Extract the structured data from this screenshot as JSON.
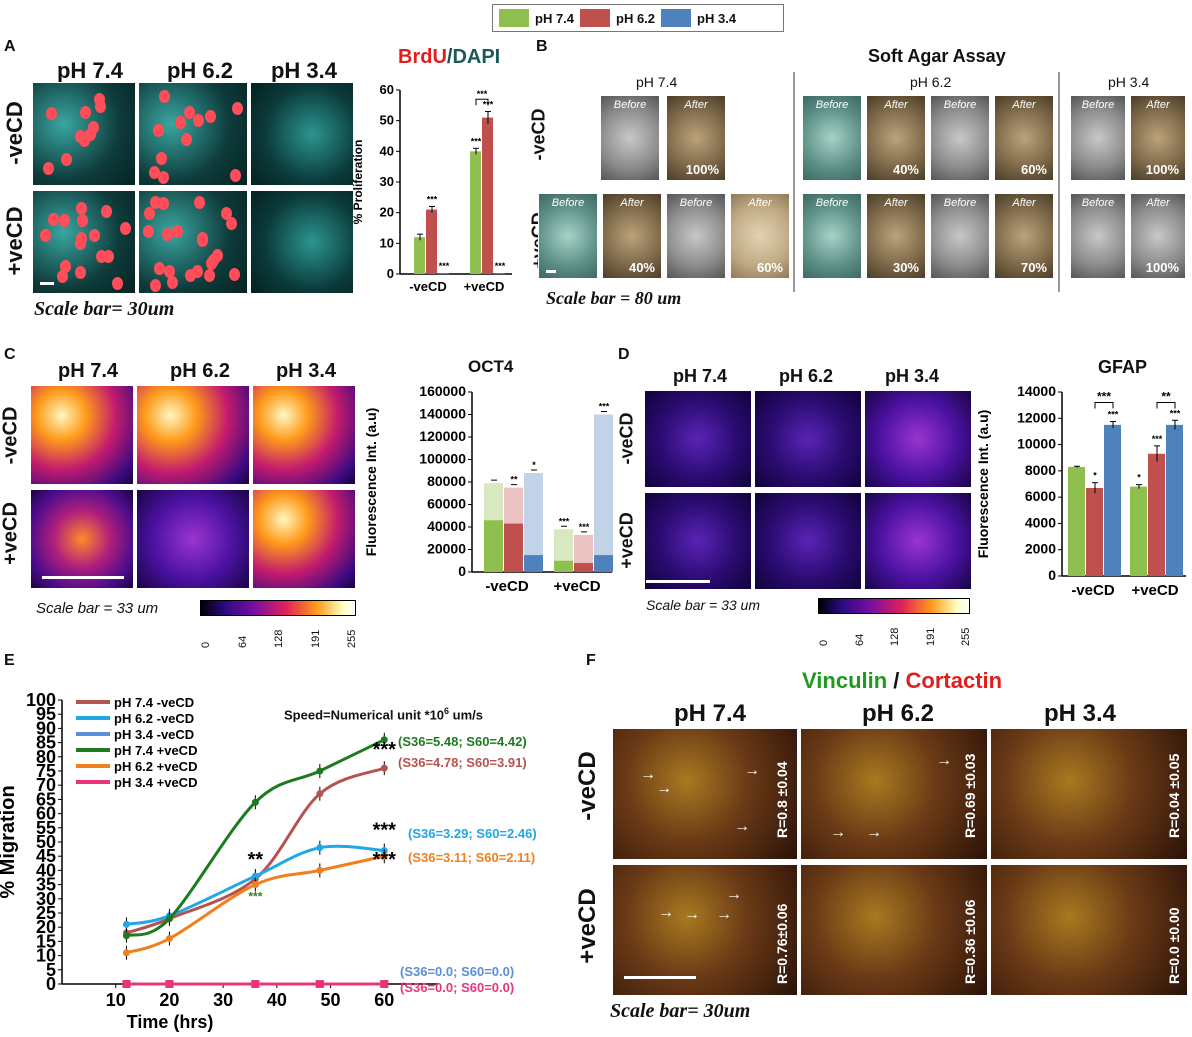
{
  "legend_top": [
    {
      "label": "pH 7.4",
      "color": "#8fbf4f"
    },
    {
      "label": "pH 6.2",
      "color": "#c0504d"
    },
    {
      "label": "pH 3.4",
      "color": "#4f81bd"
    }
  ],
  "panelA": {
    "letter": "A",
    "cols": [
      "pH 7.4",
      "pH 6.2",
      "pH 3.4"
    ],
    "rows": [
      "-veCD",
      "+veCD"
    ],
    "scale": "Scale bar= 30um",
    "chart_title_red": "BrdU",
    "chart_title_sep": "/",
    "chart_title_teal": "DAPI"
  },
  "panelB": {
    "letter": "B",
    "title": "Soft Agar Assay",
    "col_headers": [
      "pH 7.4",
      "pH 6.2",
      "pH 3.4"
    ],
    "rows": [
      "-veCD",
      "+veCD"
    ],
    "before": "Before",
    "after": "After",
    "percentages": {
      "neg_74": [
        "100%"
      ],
      "neg_62": [
        "40%",
        "60%"
      ],
      "neg_34": [
        "100%"
      ],
      "pos_74": [
        "40%",
        "60%"
      ],
      "pos_62": [
        "30%",
        "70%"
      ],
      "pos_34": [
        "100%"
      ]
    },
    "scale": "Scale bar = 80 um"
  },
  "panelC": {
    "letter": "C",
    "cols": [
      "pH 7.4",
      "pH 6.2",
      "pH 3.4"
    ],
    "rows": [
      "-veCD",
      "+veCD"
    ],
    "scale": "Scale bar = 33 um",
    "colorbar_ticks": [
      "0",
      "64",
      "128",
      "191",
      "255"
    ]
  },
  "panelD": {
    "letter": "D",
    "cols": [
      "pH 7.4",
      "pH 6.2",
      "pH 3.4"
    ],
    "rows": [
      "-veCD",
      "+veCD"
    ],
    "scale": "Scale bar = 33 um",
    "colorbar_ticks": [
      "0",
      "64",
      "128",
      "191",
      "255"
    ]
  },
  "panelE": {
    "letter": "E",
    "speed_note_pre": "Speed=Numerical unit *10",
    "speed_note_sup": "6",
    "speed_note_post": " um/s"
  },
  "panelF": {
    "letter": "F",
    "title_green": "Vinculin",
    "title_sep": " / ",
    "title_red": "Cortactin",
    "cols": [
      "pH 7.4",
      "pH 6.2",
      "pH 3.4"
    ],
    "rows": [
      "-veCD",
      "+veCD"
    ],
    "r_values": {
      "neg": [
        "R=0.8 ±0.04",
        "R=0.69 ±0.03",
        "R=0.04 ±0.05"
      ],
      "pos": [
        "R=0.76±0.06",
        "R=0.36 ±0.06",
        "R=0.0 ±0.00"
      ]
    },
    "scale": "Scale bar= 30um"
  },
  "chart_data": [
    {
      "id": "proliferation",
      "type": "bar",
      "ylabel": "% Proliferation",
      "ylim": [
        0,
        60
      ],
      "yticks": [
        0,
        10,
        20,
        30,
        40,
        50,
        60
      ],
      "categories": [
        "-veCD",
        "+veCD"
      ],
      "series": [
        {
          "name": "pH 7.4",
          "color": "#8fbf4f",
          "values": [
            12,
            40
          ],
          "err": [
            1,
            1
          ],
          "sig": [
            "",
            "***"
          ]
        },
        {
          "name": "pH 6.2",
          "color": "#c0504d",
          "values": [
            21,
            51
          ],
          "err": [
            1,
            2
          ],
          "sig": [
            "***",
            "***"
          ]
        },
        {
          "name": "pH 3.4",
          "color": "#4f81bd",
          "values": [
            0.3,
            0.3
          ],
          "err": [
            0,
            0
          ],
          "sig": [
            "***",
            "***"
          ]
        }
      ],
      "bracket": "***"
    },
    {
      "id": "oct4",
      "type": "bar",
      "title": "OCT4",
      "ylabel": "Fluorescence Int. (a.u)",
      "ylim": [
        0,
        160000
      ],
      "yticks": [
        0,
        20000,
        40000,
        60000,
        80000,
        100000,
        120000,
        140000,
        160000
      ],
      "categories": [
        "-veCD",
        "+veCD"
      ],
      "series": [
        {
          "name": "pH 7.4",
          "color": "#8fbf4f",
          "values": [
            46000,
            10000
          ],
          "total": [
            79000,
            38000
          ],
          "sig": [
            "",
            "***"
          ]
        },
        {
          "name": "pH 6.2",
          "color": "#c0504d",
          "values": [
            43000,
            8000
          ],
          "total": [
            75000,
            33000
          ],
          "sig": [
            "**",
            "***"
          ]
        },
        {
          "name": "pH 3.4",
          "color": "#4f81bd",
          "values": [
            15000,
            15000
          ],
          "total": [
            88000,
            140000
          ],
          "sig": [
            "*",
            "***"
          ]
        }
      ]
    },
    {
      "id": "gfap",
      "type": "bar",
      "title": "GFAP",
      "ylabel": "Fluorescence Int. (a.u)",
      "ylim": [
        0,
        14000
      ],
      "yticks": [
        0,
        2000,
        4000,
        6000,
        8000,
        10000,
        12000,
        14000
      ],
      "categories": [
        "-veCD",
        "+veCD"
      ],
      "series": [
        {
          "name": "pH 7.4",
          "color": "#8fbf4f",
          "values": [
            8300,
            6800
          ],
          "err": [
            50,
            150
          ],
          "sig": [
            "",
            "*"
          ]
        },
        {
          "name": "pH 6.2",
          "color": "#c0504d",
          "values": [
            6700,
            9300
          ],
          "err": [
            400,
            600
          ],
          "sig": [
            "*",
            "***"
          ]
        },
        {
          "name": "pH 3.4",
          "color": "#4f81bd",
          "values": [
            11500,
            11500
          ],
          "err": [
            250,
            350
          ],
          "sig": [
            "***",
            "***"
          ]
        }
      ],
      "brackets": [
        "***",
        "**"
      ]
    },
    {
      "id": "migration",
      "type": "line",
      "xlabel": "Time (hrs)",
      "ylabel": "% Migration",
      "xlim": [
        0,
        70
      ],
      "ylim": [
        0,
        100
      ],
      "xticks": [
        10,
        20,
        30,
        40,
        50,
        60
      ],
      "yticks": [
        0,
        5,
        10,
        15,
        20,
        25,
        30,
        35,
        40,
        45,
        50,
        55,
        60,
        65,
        70,
        75,
        80,
        85,
        90,
        95,
        100
      ],
      "x": [
        12,
        20,
        36,
        48,
        60
      ],
      "series": [
        {
          "name": "pH 7.4 -veCD",
          "color": "#b5534f",
          "values": [
            18,
            23,
            37,
            67,
            76
          ],
          "speed": "(S36=4.78; S60=3.91)",
          "sig_last": "***"
        },
        {
          "name": "pH 6.2 -veCD",
          "color": "#1fa7e8",
          "values": [
            21,
            24,
            38,
            48,
            47
          ],
          "speed": "(S36=3.29; S60=2.46)",
          "sig_last": "***",
          "sig_36": "**"
        },
        {
          "name": "pH 3.4 -veCD",
          "color": "#5b8fd6",
          "values": [
            0,
            0,
            0,
            0,
            0
          ],
          "speed": "(S36=0.0; S60=0.0)"
        },
        {
          "name": "pH 7.4 +veCD",
          "color": "#1e7a1e",
          "values": [
            17,
            23,
            64,
            75,
            86
          ],
          "speed": "(S36=5.48; S60=4.42)"
        },
        {
          "name": "pH 6.2 +veCD",
          "color": "#f07f1e",
          "values": [
            11,
            16,
            35,
            40,
            45
          ],
          "speed": "(S36=3.11; S60=2.11)",
          "sig_last": "***",
          "sig_36": "***"
        },
        {
          "name": "pH 3.4 +veCD",
          "color": "#e8357a",
          "values": [
            0,
            0,
            0,
            0,
            0
          ],
          "speed": "(S36=0.0; S60=0.0)"
        }
      ]
    }
  ]
}
